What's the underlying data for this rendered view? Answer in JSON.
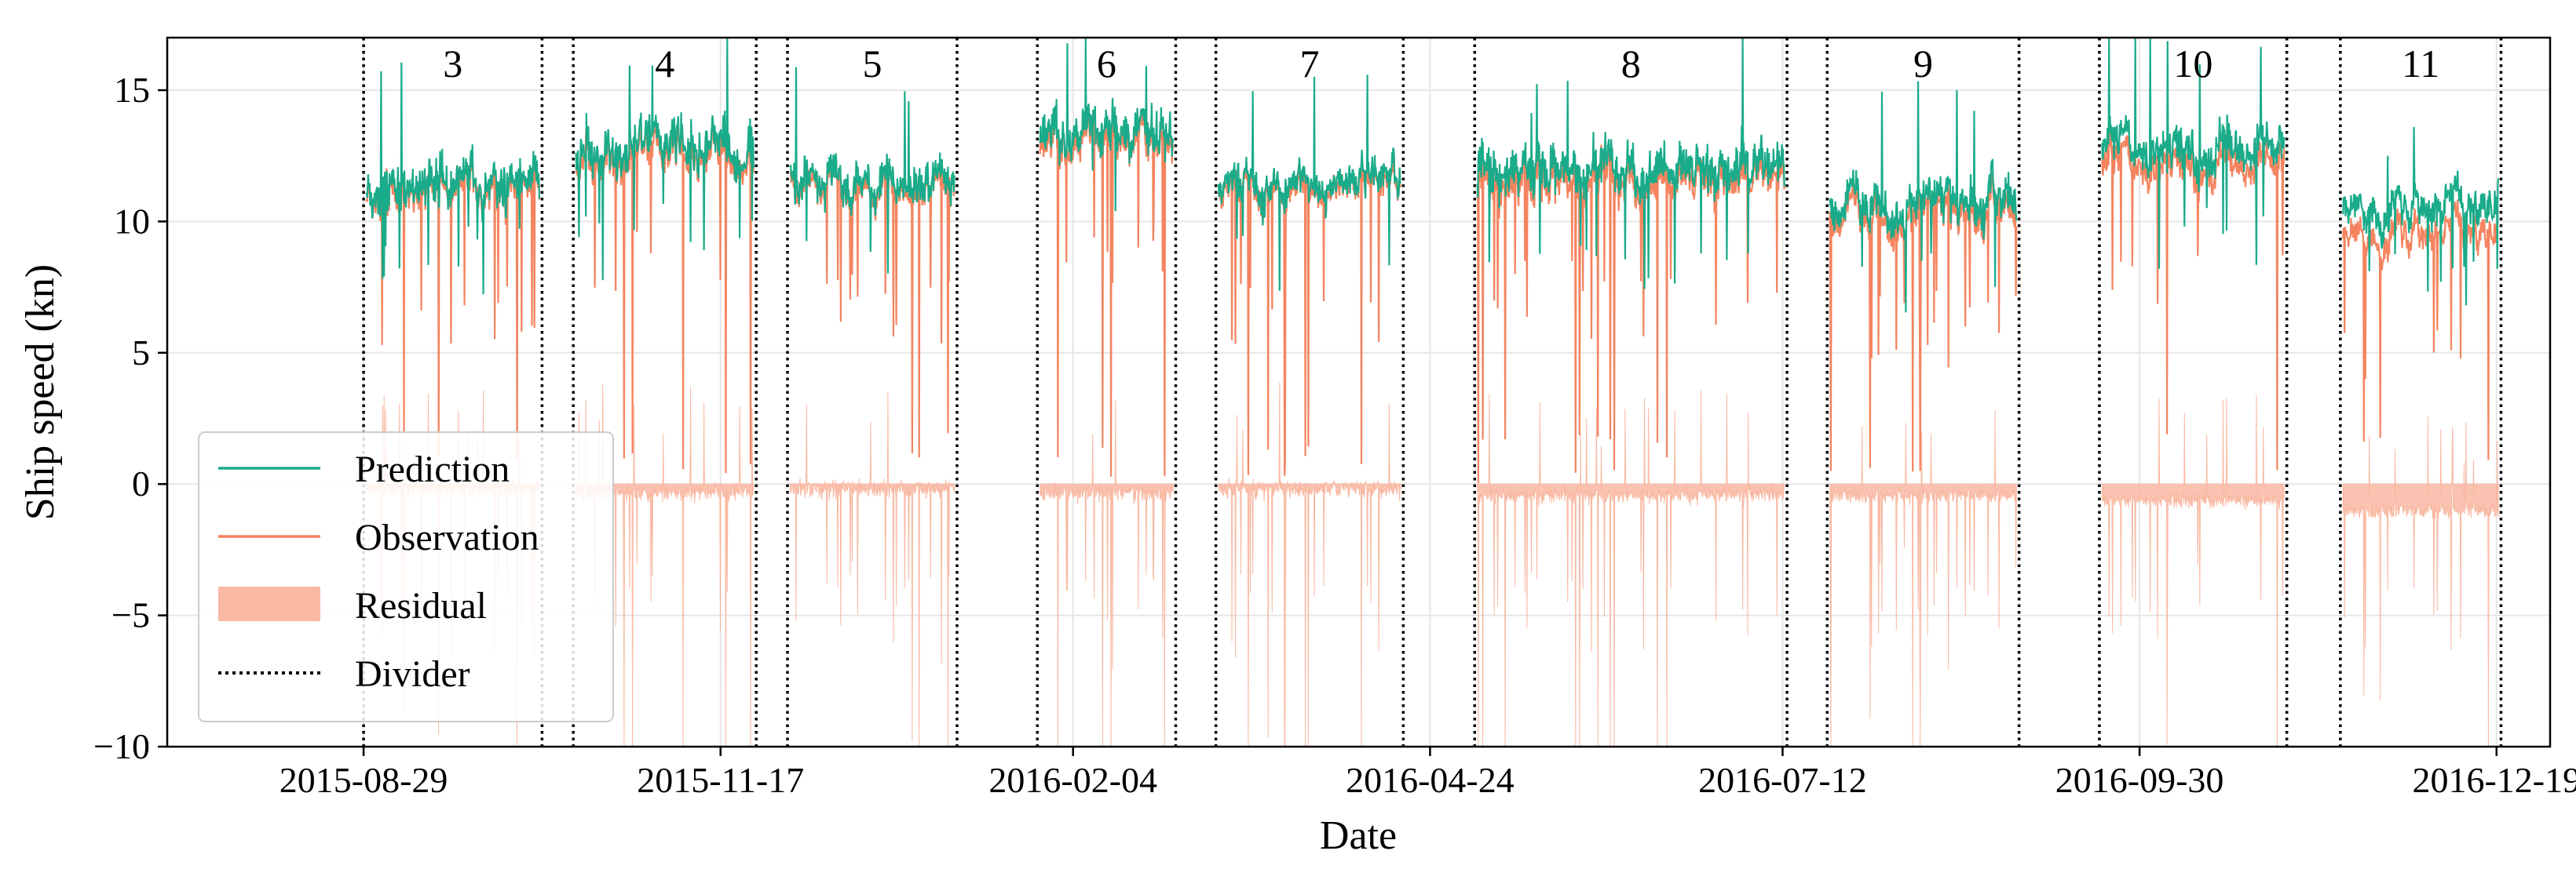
{
  "chart_data": {
    "type": "line",
    "xlabel": "Date",
    "ylabel": "Ship speed (kn)",
    "ylim": [
      -10,
      17
    ],
    "xlim": [
      "2015-07-16",
      "2016-12-31"
    ],
    "yticks": [
      -10,
      -5,
      0,
      5,
      10,
      15
    ],
    "xticks": [
      "2015-08-29",
      "2015-11-17",
      "2016-02-04",
      "2016-04-24",
      "2016-07-12",
      "2016-09-30",
      "2016-12-19"
    ],
    "ytick_labels": [
      "−10",
      "−5",
      "0",
      "5",
      "10",
      "15"
    ],
    "grid": true,
    "legend": {
      "placement": "lower-left",
      "entries": [
        "Prediction",
        "Observation",
        "Residual",
        "Divider"
      ]
    },
    "colors": {
      "prediction": "#1aab8a",
      "observation": "#f4845f",
      "residual": "#f9b9a3",
      "divider": "#000000"
    },
    "series": [
      {
        "name": "Prediction"
      },
      {
        "name": "Observation"
      },
      {
        "name": "Residual"
      }
    ],
    "dividers": [
      "2015-08-29",
      "2015-10-08",
      "2015-10-15",
      "2015-11-25",
      "2015-12-02",
      "2016-01-09",
      "2016-01-27",
      "2016-02-27",
      "2016-03-07",
      "2016-04-18",
      "2016-05-04",
      "2016-07-13",
      "2016-07-22",
      "2016-09-03",
      "2016-09-21",
      "2016-11-02",
      "2016-11-14",
      "2016-12-20"
    ],
    "segments": [
      {
        "label": "3",
        "start": "2015-08-29",
        "end": "2015-10-08",
        "obs_mean": 11.2,
        "pred_offset": 0.2,
        "spread": 1.2
      },
      {
        "label": "4",
        "start": "2015-10-15",
        "end": "2015-11-25",
        "obs_mean": 12.6,
        "pred_offset": 0.3,
        "spread": 1.3
      },
      {
        "label": "5",
        "start": "2015-12-02",
        "end": "2016-01-09",
        "obs_mean": 11.3,
        "pred_offset": 0.2,
        "spread": 1.0
      },
      {
        "label": "6",
        "start": "2016-01-27",
        "end": "2016-02-27",
        "obs_mean": 13.2,
        "pred_offset": 0.3,
        "spread": 1.2
      },
      {
        "label": "7",
        "start": "2016-03-07",
        "end": "2016-04-18",
        "obs_mean": 11.2,
        "pred_offset": 0.2,
        "spread": 0.9
      },
      {
        "label": "8",
        "start": "2016-05-04",
        "end": "2016-07-13",
        "obs_mean": 11.5,
        "pred_offset": 0.4,
        "spread": 1.4
      },
      {
        "label": "9",
        "start": "2016-07-22",
        "end": "2016-09-03",
        "obs_mean": 10.4,
        "pred_offset": 0.4,
        "spread": 1.1
      },
      {
        "label": "10",
        "start": "2016-09-21",
        "end": "2016-11-02",
        "obs_mean": 12.1,
        "pred_offset": 0.6,
        "spread": 1.1
      },
      {
        "label": "11",
        "start": "2016-11-14",
        "end": "2016-12-20",
        "obs_mean": 9.6,
        "pred_offset": 1.0,
        "spread": 0.9
      }
    ]
  }
}
